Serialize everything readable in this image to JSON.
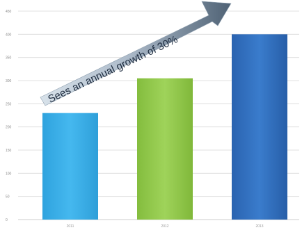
{
  "chart_data": {
    "type": "bar",
    "categories": [
      "2011",
      "2012",
      "2013"
    ],
    "values": [
      230,
      305,
      400
    ],
    "ylim": [
      0,
      450
    ],
    "yticks": [
      0,
      50,
      100,
      150,
      200,
      250,
      300,
      350,
      400,
      450
    ],
    "ytick_labels": [
      "0",
      "50",
      "100",
      "150",
      "200",
      "250",
      "300",
      "350",
      "400",
      "450"
    ],
    "grid": true,
    "colors": [
      "#3fb2ea",
      "#93c94f",
      "#2f6fbf"
    ],
    "annotation": "Sees an annual growth of 30%"
  }
}
